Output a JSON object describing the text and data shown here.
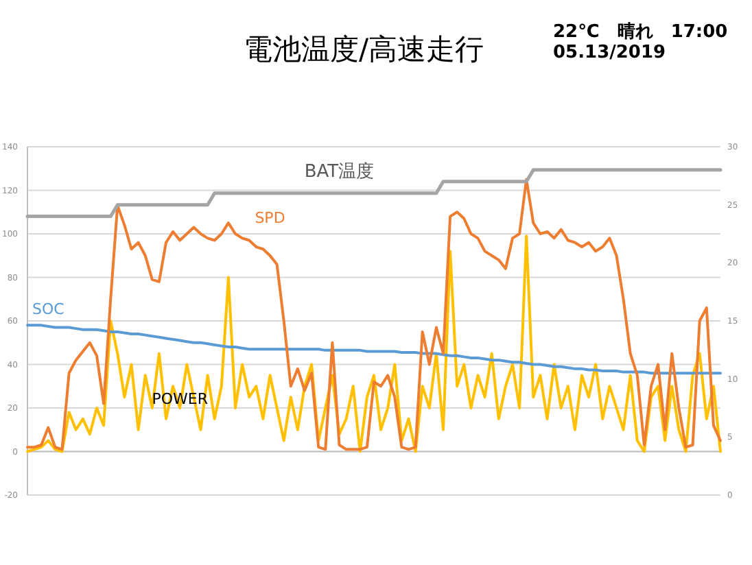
{
  "chart_data": {
    "type": "line",
    "title": "電池温度/高速走行",
    "annotations": [
      "22℃　晴れ　17:00",
      "05.13/2019"
    ],
    "categories": [
      null,
      null,
      null,
      null,
      null,
      null,
      null,
      null,
      null,
      null,
      null,
      null,
      null,
      null,
      null,
      null,
      null,
      null,
      null,
      null,
      null,
      null,
      null,
      null,
      null,
      null,
      null,
      null,
      null,
      null,
      null,
      null,
      null,
      null,
      null,
      null,
      null,
      null,
      null,
      null,
      null,
      null,
      null,
      null,
      null,
      null,
      null,
      null,
      null,
      null,
      null,
      null,
      null,
      null,
      null,
      null,
      null,
      null,
      null,
      null,
      null,
      null,
      null,
      null,
      null,
      null,
      null,
      null,
      null,
      null,
      null,
      null,
      null,
      null,
      null,
      null,
      null,
      null,
      null,
      null,
      null,
      null,
      null,
      null,
      null,
      null,
      null,
      null,
      null,
      null,
      null,
      null,
      null,
      null,
      null,
      null,
      null,
      null,
      null,
      null,
      null
    ],
    "series": [
      {
        "name": "SOC",
        "color": "#5b9bd5",
        "values": [
          58,
          58,
          58,
          57.5,
          57,
          57,
          57,
          56.5,
          56,
          56,
          56,
          55.5,
          55,
          55,
          54.5,
          54,
          54,
          53.5,
          53,
          52.5,
          52,
          51.5,
          51,
          50.5,
          50,
          50,
          49.5,
          49,
          48.5,
          48,
          48,
          47.5,
          47,
          47,
          47,
          47,
          47,
          47,
          47,
          47,
          47,
          47,
          47,
          46.5,
          46.5,
          46.5,
          46.5,
          46.5,
          46.5,
          46,
          46,
          46,
          46,
          46,
          45.5,
          45.5,
          45.5,
          45,
          45,
          45,
          44.5,
          44,
          44,
          43.5,
          43,
          43,
          42.5,
          42,
          42,
          41.5,
          41,
          41,
          40.5,
          40,
          40,
          39.5,
          39,
          39,
          38.5,
          38,
          38,
          37.5,
          37.5,
          37,
          37,
          37,
          36.5,
          36.5,
          36.5,
          36.5,
          36,
          36,
          36,
          36,
          36,
          36,
          36,
          36,
          36,
          36,
          36
        ]
      },
      {
        "name": "SPD",
        "color": "#ed7d31",
        "values": [
          2,
          2,
          3,
          11,
          2,
          1,
          36,
          42,
          46,
          50,
          44,
          22,
          70,
          113,
          104,
          93,
          96,
          90,
          79,
          78,
          96,
          101,
          97,
          100,
          103,
          100,
          98,
          97,
          100,
          105,
          100,
          98,
          97,
          94,
          93,
          90,
          86,
          60,
          30,
          38,
          28,
          36,
          2,
          1,
          50,
          3,
          1,
          1,
          1,
          2,
          32,
          30,
          35,
          25,
          2,
          1,
          2,
          55,
          40,
          57,
          45,
          108,
          110,
          107,
          100,
          98,
          92,
          90,
          88,
          84,
          98,
          100,
          125,
          105,
          100,
          101,
          98,
          102,
          97,
          96,
          94,
          96,
          92,
          94,
          98,
          90,
          70,
          45,
          35,
          3,
          30,
          40,
          10,
          45,
          20,
          2,
          3,
          60,
          66,
          12,
          5
        ]
      },
      {
        "name": "POWER",
        "color": "#ffc000",
        "values": [
          0,
          1,
          2,
          5,
          1,
          0,
          18,
          10,
          15,
          8,
          20,
          12,
          60,
          45,
          25,
          40,
          10,
          35,
          20,
          45,
          15,
          30,
          20,
          40,
          25,
          10,
          35,
          15,
          30,
          80,
          20,
          40,
          25,
          30,
          15,
          35,
          20,
          5,
          25,
          10,
          30,
          40,
          5,
          20,
          35,
          8,
          15,
          30,
          0,
          25,
          35,
          10,
          20,
          40,
          5,
          15,
          0,
          30,
          20,
          45,
          10,
          92,
          30,
          40,
          20,
          35,
          25,
          45,
          15,
          30,
          40,
          20,
          99,
          25,
          35,
          15,
          40,
          20,
          30,
          10,
          35,
          25,
          40,
          15,
          30,
          20,
          10,
          35,
          5,
          0,
          25,
          30,
          5,
          30,
          10,
          0,
          35,
          45,
          15,
          30,
          0
        ]
      },
      {
        "name": "BAT温度",
        "color": "#a5a5a5",
        "axis": "y2",
        "values": [
          24,
          24,
          24,
          24,
          24,
          24,
          24,
          24,
          24,
          24,
          24,
          24,
          24,
          25,
          25,
          25,
          25,
          25,
          25,
          25,
          25,
          25,
          25,
          25,
          25,
          25,
          25,
          26,
          26,
          26,
          26,
          26,
          26,
          26,
          26,
          26,
          26,
          26,
          26,
          26,
          26,
          26,
          26,
          26,
          26,
          26,
          26,
          26,
          26,
          26,
          26,
          26,
          26,
          26,
          26,
          26,
          26,
          26,
          26,
          26,
          27,
          27,
          27,
          27,
          27,
          27,
          27,
          27,
          27,
          27,
          27,
          27,
          27,
          28,
          28,
          28,
          28,
          28,
          28,
          28,
          28,
          28,
          28,
          28,
          28,
          28,
          28,
          28,
          28,
          28,
          28,
          28,
          28,
          28,
          28,
          28,
          28,
          28,
          28,
          28,
          28
        ]
      }
    ],
    "ylim": [
      -20,
      140
    ],
    "yticks": [
      -20,
      0,
      20,
      40,
      60,
      80,
      100,
      120,
      140
    ],
    "y2lim": [
      0,
      30
    ],
    "y2ticks": [
      0,
      5,
      10,
      15,
      20,
      25,
      30
    ],
    "grid": "y",
    "legend": false,
    "line_style": "solid",
    "marker": "none"
  }
}
